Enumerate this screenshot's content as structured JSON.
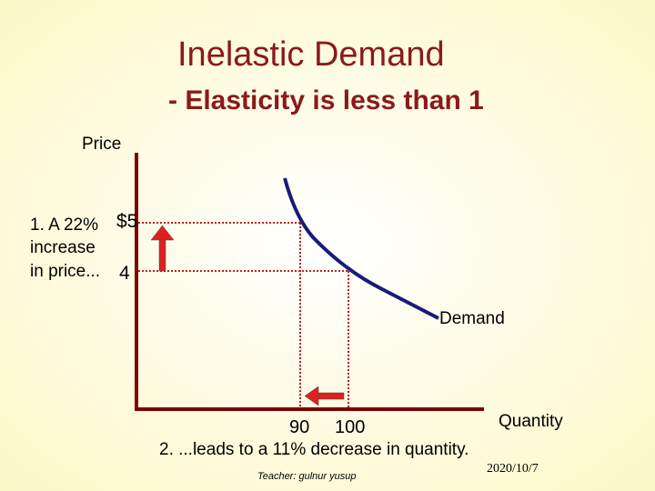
{
  "header": {
    "title": "Inelastic Demand",
    "subtitle": "- Elasticity is less than 1"
  },
  "diagram": {
    "y_axis_label": "Price",
    "x_axis_label": "Quantity",
    "curve_label": "Demand",
    "price_high": "$5",
    "price_low": "4",
    "quantity_low": "90",
    "quantity_high": "100",
    "price_note": [
      "1. A 22%",
      "increase",
      "in price..."
    ],
    "quantity_note": "2. ...leads to a 11% decrease in quantity."
  },
  "footer": {
    "teacher": "Teacher: gulnur yusup",
    "date": "2020/10/7"
  }
}
